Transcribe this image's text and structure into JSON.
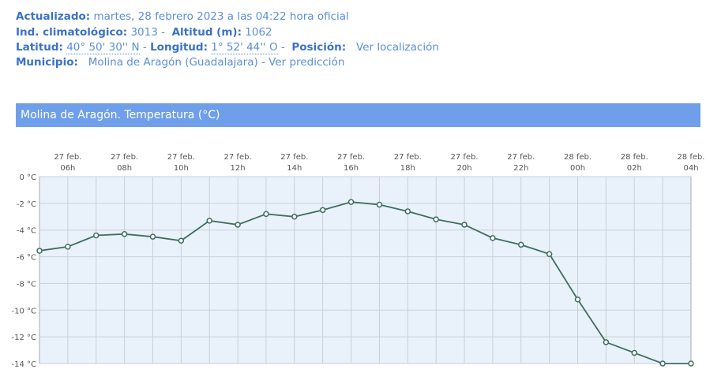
{
  "header": {
    "updated_label": "Actualizado:",
    "updated_value": "martes, 28 febrero 2023 a las 04:22 hora oficial",
    "index_label": "Ind. climatológico:",
    "index_value": "3013 -",
    "altitude_label": "Altitud (m):",
    "altitude_value": "1062",
    "latitude_label": "Latitud:",
    "latitude_value": "40° 50' 30'' N",
    "sep1": "-",
    "longitude_label": "Longitud:",
    "longitude_value": "1° 52' 44'' O",
    "sep2": "-",
    "position_label": "Posición:",
    "position_link": "Ver localización",
    "municipality_label": "Municipio:",
    "municipality_value": "Molina de Aragón (Guadalajara) - Ver predicción"
  },
  "chart_data": {
    "type": "line",
    "title": "Molina de Aragón. Temperatura (°C)",
    "categories": [
      null,
      [
        "27 feb.",
        "06h"
      ],
      null,
      [
        "27 feb.",
        "08h"
      ],
      null,
      [
        "27 feb.",
        "10h"
      ],
      null,
      [
        "27 feb.",
        "12h"
      ],
      null,
      [
        "27 feb.",
        "14h"
      ],
      null,
      [
        "27 feb.",
        "16h"
      ],
      null,
      [
        "27 feb.",
        "18h"
      ],
      null,
      [
        "27 feb.",
        "20h"
      ],
      null,
      [
        "27 feb.",
        "22h"
      ],
      null,
      [
        "28 feb.",
        "00h"
      ],
      null,
      [
        "28 feb.",
        "02h"
      ],
      null,
      [
        "28 feb.",
        "04h"
      ]
    ],
    "series": [
      {
        "name": "Temperatura",
        "color": "#3f6e5f",
        "values": [
          -5.55,
          -5.25,
          -4.4,
          -4.3,
          -4.5,
          -4.8,
          -3.3,
          -3.6,
          -2.8,
          -3.0,
          -2.5,
          -1.9,
          -2.1,
          -2.6,
          -3.2,
          -3.6,
          -4.6,
          -5.1,
          -5.8,
          -9.2,
          -12.4,
          -13.2,
          -14.0,
          -14.0
        ]
      }
    ],
    "ylim": [
      -14,
      0
    ],
    "yticks": [
      {
        "value": 0,
        "label": "0 °C"
      },
      {
        "value": -2,
        "label": "-2 °C"
      },
      {
        "value": -4,
        "label": "-4 °C"
      },
      {
        "value": -6,
        "label": "-6 °C"
      },
      {
        "value": -8,
        "label": "-8 °C"
      },
      {
        "value": -10,
        "label": "-10 °C"
      },
      {
        "value": -12,
        "label": "-12 °C"
      },
      {
        "value": -14,
        "label": "-14 °C"
      }
    ],
    "grid": true
  }
}
